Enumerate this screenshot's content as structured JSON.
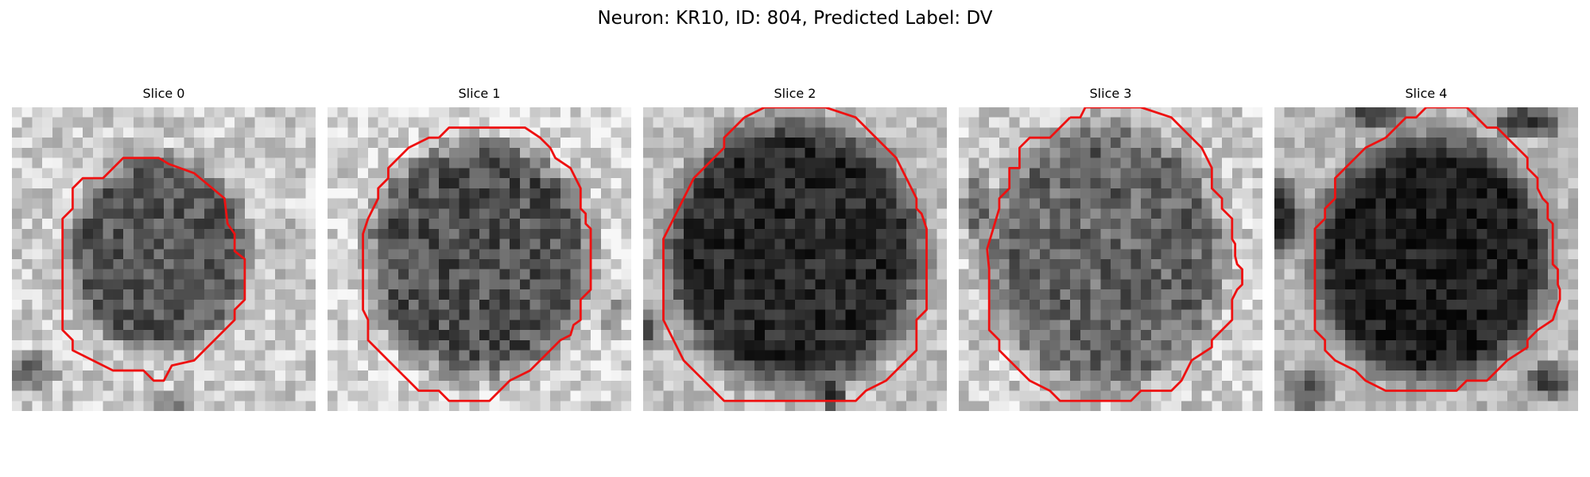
{
  "figure": {
    "title": "Neuron: KR10, ID: 804, Predicted Label: DV"
  },
  "slices": [
    {
      "title": "Slice 0"
    },
    {
      "title": "Slice 1"
    },
    {
      "title": "Slice 2"
    },
    {
      "title": "Slice 3"
    },
    {
      "title": "Slice 4"
    }
  ],
  "colors": {
    "contour": "#ee1111",
    "background": "#ffffff"
  }
}
